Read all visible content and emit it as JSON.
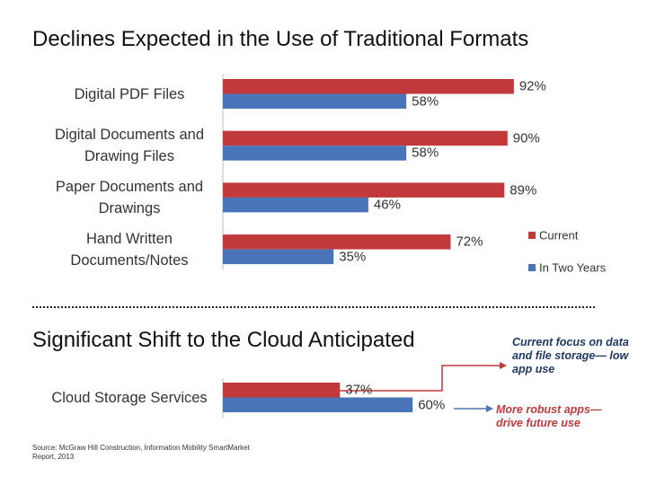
{
  "chart_data": [
    {
      "type": "bar",
      "orientation": "horizontal",
      "title": "Declines Expected in the Use of Traditional Formats",
      "categories": [
        "Digital PDF Files",
        "Digital Documents and Drawing Files",
        "Paper Documents and Drawings",
        "Hand Written Documents/Notes"
      ],
      "series": [
        {
          "name": "Current",
          "color": "#c0393b",
          "values": [
            92,
            90,
            89,
            72
          ],
          "value_labels": [
            "92%",
            "90%",
            "89%",
            "72%"
          ]
        },
        {
          "name": "In Two Years",
          "color": "#4a74b8",
          "values": [
            58,
            58,
            46,
            35
          ],
          "value_labels": [
            "58%",
            "58%",
            "46%",
            "35%"
          ]
        }
      ],
      "legend": "lower right"
    },
    {
      "type": "bar",
      "orientation": "horizontal",
      "title": "Significant Shift to the Cloud Anticipated",
      "categories": [
        "Cloud Storage Services"
      ],
      "series": [
        {
          "color": "#c0393b",
          "values": [
            37
          ],
          "value_labels": [
            "37%"
          ]
        },
        {
          "color": "#4a74b8",
          "values": [
            60
          ],
          "value_labels": [
            "60%"
          ]
        }
      ],
      "annotations": [
        "Current focus on data and file storage— low app use",
        "More robust apps— drive future use"
      ]
    }
  ],
  "source": "Source: McGraw Hill Construction, Information Mobility SmartMarket Report, 2013"
}
